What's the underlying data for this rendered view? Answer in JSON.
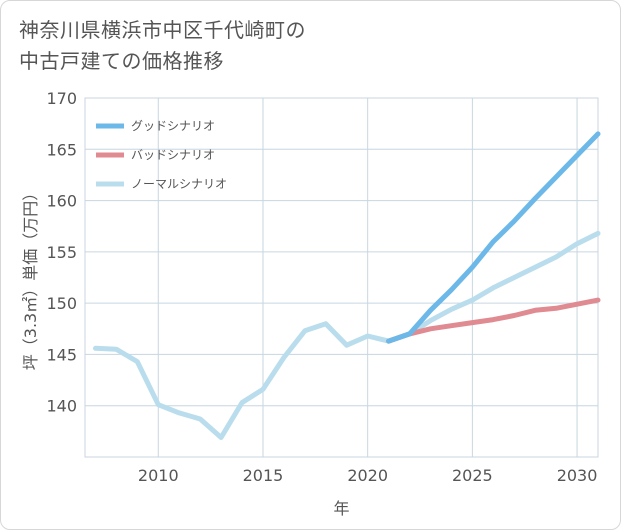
{
  "title": "神奈川県横浜市中区千代崎町の\n中古戸建ての価格推移",
  "chart_data": {
    "type": "line",
    "title": "神奈川県横浜市中区千代崎町の中古戸建ての価格推移",
    "xlabel": "年",
    "ylabel": "坪（3.3㎡）単価（万円）",
    "xlim": [
      2006.5,
      2031
    ],
    "ylim": [
      135,
      170
    ],
    "xticks": [
      2010,
      2015,
      2020,
      2025,
      2030
    ],
    "yticks": [
      140,
      145,
      150,
      155,
      160,
      165,
      170
    ],
    "grid": true,
    "legend_position": "top-left",
    "series": [
      {
        "name": "グッドシナリオ",
        "color": "#6cb8e8",
        "x": [
          2021,
          2022,
          2023,
          2024,
          2025,
          2026,
          2027,
          2028,
          2029,
          2030,
          2031
        ],
        "y": [
          146.3,
          147.0,
          149.3,
          151.3,
          153.5,
          156.0,
          158.0,
          160.2,
          162.3,
          164.4,
          166.5
        ]
      },
      {
        "name": "バッドシナリオ",
        "color": "#e08a92",
        "x": [
          2021,
          2022,
          2023,
          2024,
          2025,
          2026,
          2027,
          2028,
          2029,
          2030,
          2031
        ],
        "y": [
          146.3,
          147.0,
          147.5,
          147.8,
          148.1,
          148.4,
          148.8,
          149.3,
          149.5,
          149.9,
          150.3
        ]
      },
      {
        "name": "ノーマルシナリオ",
        "color": "#b9ddec",
        "x": [
          2007,
          2008,
          2009,
          2010,
          2011,
          2012,
          2013,
          2014,
          2015,
          2016,
          2017,
          2018,
          2019,
          2020,
          2021,
          2022,
          2023,
          2024,
          2025,
          2026,
          2027,
          2028,
          2029,
          2030,
          2031
        ],
        "y": [
          145.6,
          145.5,
          144.3,
          140.1,
          139.3,
          138.7,
          136.9,
          140.3,
          141.6,
          144.7,
          147.3,
          148.0,
          145.9,
          146.8,
          146.3,
          147.0,
          148.3,
          149.4,
          150.3,
          151.5,
          152.5,
          153.5,
          154.5,
          155.8,
          156.8
        ]
      }
    ]
  }
}
